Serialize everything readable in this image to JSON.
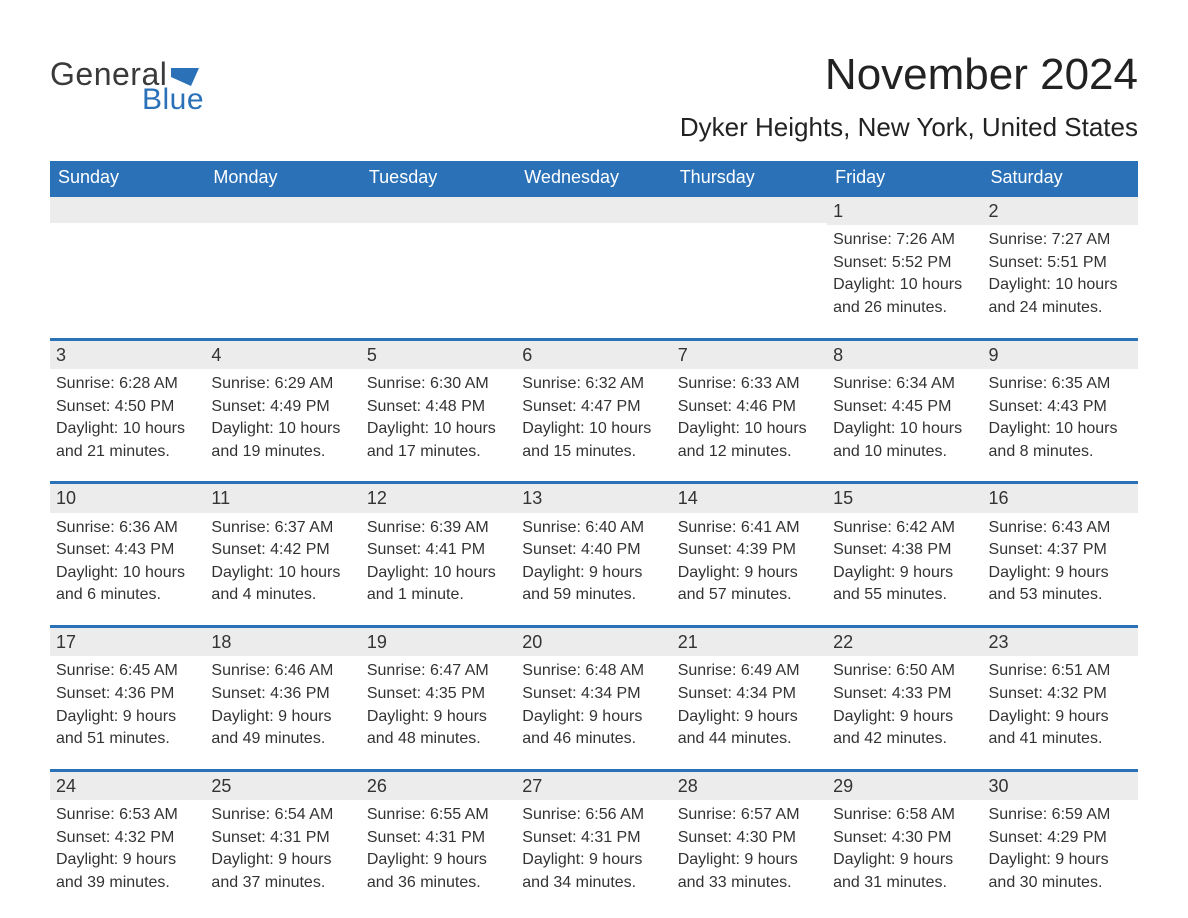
{
  "logo": {
    "part1": "General",
    "part2": "Blue",
    "flag_color": "#2a71b8",
    "text_color_gray": "#3a3a3a"
  },
  "title": "November 2024",
  "location": "Dyker Heights, New York, United States",
  "colors": {
    "header_bg": "#2a71b8",
    "header_text": "#ffffff",
    "row_border": "#2a71b8",
    "daynum_bg": "#ececec",
    "body_text": "#333333",
    "page_bg": "#ffffff"
  },
  "fonts": {
    "title_size": 44,
    "location_size": 26,
    "dow_size": 18,
    "daynum_size": 18,
    "body_size": 16
  },
  "day_names": [
    "Sunday",
    "Monday",
    "Tuesday",
    "Wednesday",
    "Thursday",
    "Friday",
    "Saturday"
  ],
  "weeks": [
    [
      {
        "day": "",
        "sunrise": "",
        "sunset": "",
        "daylight1": "",
        "daylight2": ""
      },
      {
        "day": "",
        "sunrise": "",
        "sunset": "",
        "daylight1": "",
        "daylight2": ""
      },
      {
        "day": "",
        "sunrise": "",
        "sunset": "",
        "daylight1": "",
        "daylight2": ""
      },
      {
        "day": "",
        "sunrise": "",
        "sunset": "",
        "daylight1": "",
        "daylight2": ""
      },
      {
        "day": "",
        "sunrise": "",
        "sunset": "",
        "daylight1": "",
        "daylight2": ""
      },
      {
        "day": "1",
        "sunrise": "Sunrise: 7:26 AM",
        "sunset": "Sunset: 5:52 PM",
        "daylight1": "Daylight: 10 hours",
        "daylight2": "and 26 minutes."
      },
      {
        "day": "2",
        "sunrise": "Sunrise: 7:27 AM",
        "sunset": "Sunset: 5:51 PM",
        "daylight1": "Daylight: 10 hours",
        "daylight2": "and 24 minutes."
      }
    ],
    [
      {
        "day": "3",
        "sunrise": "Sunrise: 6:28 AM",
        "sunset": "Sunset: 4:50 PM",
        "daylight1": "Daylight: 10 hours",
        "daylight2": "and 21 minutes."
      },
      {
        "day": "4",
        "sunrise": "Sunrise: 6:29 AM",
        "sunset": "Sunset: 4:49 PM",
        "daylight1": "Daylight: 10 hours",
        "daylight2": "and 19 minutes."
      },
      {
        "day": "5",
        "sunrise": "Sunrise: 6:30 AM",
        "sunset": "Sunset: 4:48 PM",
        "daylight1": "Daylight: 10 hours",
        "daylight2": "and 17 minutes."
      },
      {
        "day": "6",
        "sunrise": "Sunrise: 6:32 AM",
        "sunset": "Sunset: 4:47 PM",
        "daylight1": "Daylight: 10 hours",
        "daylight2": "and 15 minutes."
      },
      {
        "day": "7",
        "sunrise": "Sunrise: 6:33 AM",
        "sunset": "Sunset: 4:46 PM",
        "daylight1": "Daylight: 10 hours",
        "daylight2": "and 12 minutes."
      },
      {
        "day": "8",
        "sunrise": "Sunrise: 6:34 AM",
        "sunset": "Sunset: 4:45 PM",
        "daylight1": "Daylight: 10 hours",
        "daylight2": "and 10 minutes."
      },
      {
        "day": "9",
        "sunrise": "Sunrise: 6:35 AM",
        "sunset": "Sunset: 4:43 PM",
        "daylight1": "Daylight: 10 hours",
        "daylight2": "and 8 minutes."
      }
    ],
    [
      {
        "day": "10",
        "sunrise": "Sunrise: 6:36 AM",
        "sunset": "Sunset: 4:43 PM",
        "daylight1": "Daylight: 10 hours",
        "daylight2": "and 6 minutes."
      },
      {
        "day": "11",
        "sunrise": "Sunrise: 6:37 AM",
        "sunset": "Sunset: 4:42 PM",
        "daylight1": "Daylight: 10 hours",
        "daylight2": "and 4 minutes."
      },
      {
        "day": "12",
        "sunrise": "Sunrise: 6:39 AM",
        "sunset": "Sunset: 4:41 PM",
        "daylight1": "Daylight: 10 hours",
        "daylight2": "and 1 minute."
      },
      {
        "day": "13",
        "sunrise": "Sunrise: 6:40 AM",
        "sunset": "Sunset: 4:40 PM",
        "daylight1": "Daylight: 9 hours",
        "daylight2": "and 59 minutes."
      },
      {
        "day": "14",
        "sunrise": "Sunrise: 6:41 AM",
        "sunset": "Sunset: 4:39 PM",
        "daylight1": "Daylight: 9 hours",
        "daylight2": "and 57 minutes."
      },
      {
        "day": "15",
        "sunrise": "Sunrise: 6:42 AM",
        "sunset": "Sunset: 4:38 PM",
        "daylight1": "Daylight: 9 hours",
        "daylight2": "and 55 minutes."
      },
      {
        "day": "16",
        "sunrise": "Sunrise: 6:43 AM",
        "sunset": "Sunset: 4:37 PM",
        "daylight1": "Daylight: 9 hours",
        "daylight2": "and 53 minutes."
      }
    ],
    [
      {
        "day": "17",
        "sunrise": "Sunrise: 6:45 AM",
        "sunset": "Sunset: 4:36 PM",
        "daylight1": "Daylight: 9 hours",
        "daylight2": "and 51 minutes."
      },
      {
        "day": "18",
        "sunrise": "Sunrise: 6:46 AM",
        "sunset": "Sunset: 4:36 PM",
        "daylight1": "Daylight: 9 hours",
        "daylight2": "and 49 minutes."
      },
      {
        "day": "19",
        "sunrise": "Sunrise: 6:47 AM",
        "sunset": "Sunset: 4:35 PM",
        "daylight1": "Daylight: 9 hours",
        "daylight2": "and 48 minutes."
      },
      {
        "day": "20",
        "sunrise": "Sunrise: 6:48 AM",
        "sunset": "Sunset: 4:34 PM",
        "daylight1": "Daylight: 9 hours",
        "daylight2": "and 46 minutes."
      },
      {
        "day": "21",
        "sunrise": "Sunrise: 6:49 AM",
        "sunset": "Sunset: 4:34 PM",
        "daylight1": "Daylight: 9 hours",
        "daylight2": "and 44 minutes."
      },
      {
        "day": "22",
        "sunrise": "Sunrise: 6:50 AM",
        "sunset": "Sunset: 4:33 PM",
        "daylight1": "Daylight: 9 hours",
        "daylight2": "and 42 minutes."
      },
      {
        "day": "23",
        "sunrise": "Sunrise: 6:51 AM",
        "sunset": "Sunset: 4:32 PM",
        "daylight1": "Daylight: 9 hours",
        "daylight2": "and 41 minutes."
      }
    ],
    [
      {
        "day": "24",
        "sunrise": "Sunrise: 6:53 AM",
        "sunset": "Sunset: 4:32 PM",
        "daylight1": "Daylight: 9 hours",
        "daylight2": "and 39 minutes."
      },
      {
        "day": "25",
        "sunrise": "Sunrise: 6:54 AM",
        "sunset": "Sunset: 4:31 PM",
        "daylight1": "Daylight: 9 hours",
        "daylight2": "and 37 minutes."
      },
      {
        "day": "26",
        "sunrise": "Sunrise: 6:55 AM",
        "sunset": "Sunset: 4:31 PM",
        "daylight1": "Daylight: 9 hours",
        "daylight2": "and 36 minutes."
      },
      {
        "day": "27",
        "sunrise": "Sunrise: 6:56 AM",
        "sunset": "Sunset: 4:31 PM",
        "daylight1": "Daylight: 9 hours",
        "daylight2": "and 34 minutes."
      },
      {
        "day": "28",
        "sunrise": "Sunrise: 6:57 AM",
        "sunset": "Sunset: 4:30 PM",
        "daylight1": "Daylight: 9 hours",
        "daylight2": "and 33 minutes."
      },
      {
        "day": "29",
        "sunrise": "Sunrise: 6:58 AM",
        "sunset": "Sunset: 4:30 PM",
        "daylight1": "Daylight: 9 hours",
        "daylight2": "and 31 minutes."
      },
      {
        "day": "30",
        "sunrise": "Sunrise: 6:59 AM",
        "sunset": "Sunset: 4:29 PM",
        "daylight1": "Daylight: 9 hours",
        "daylight2": "and 30 minutes."
      }
    ]
  ]
}
